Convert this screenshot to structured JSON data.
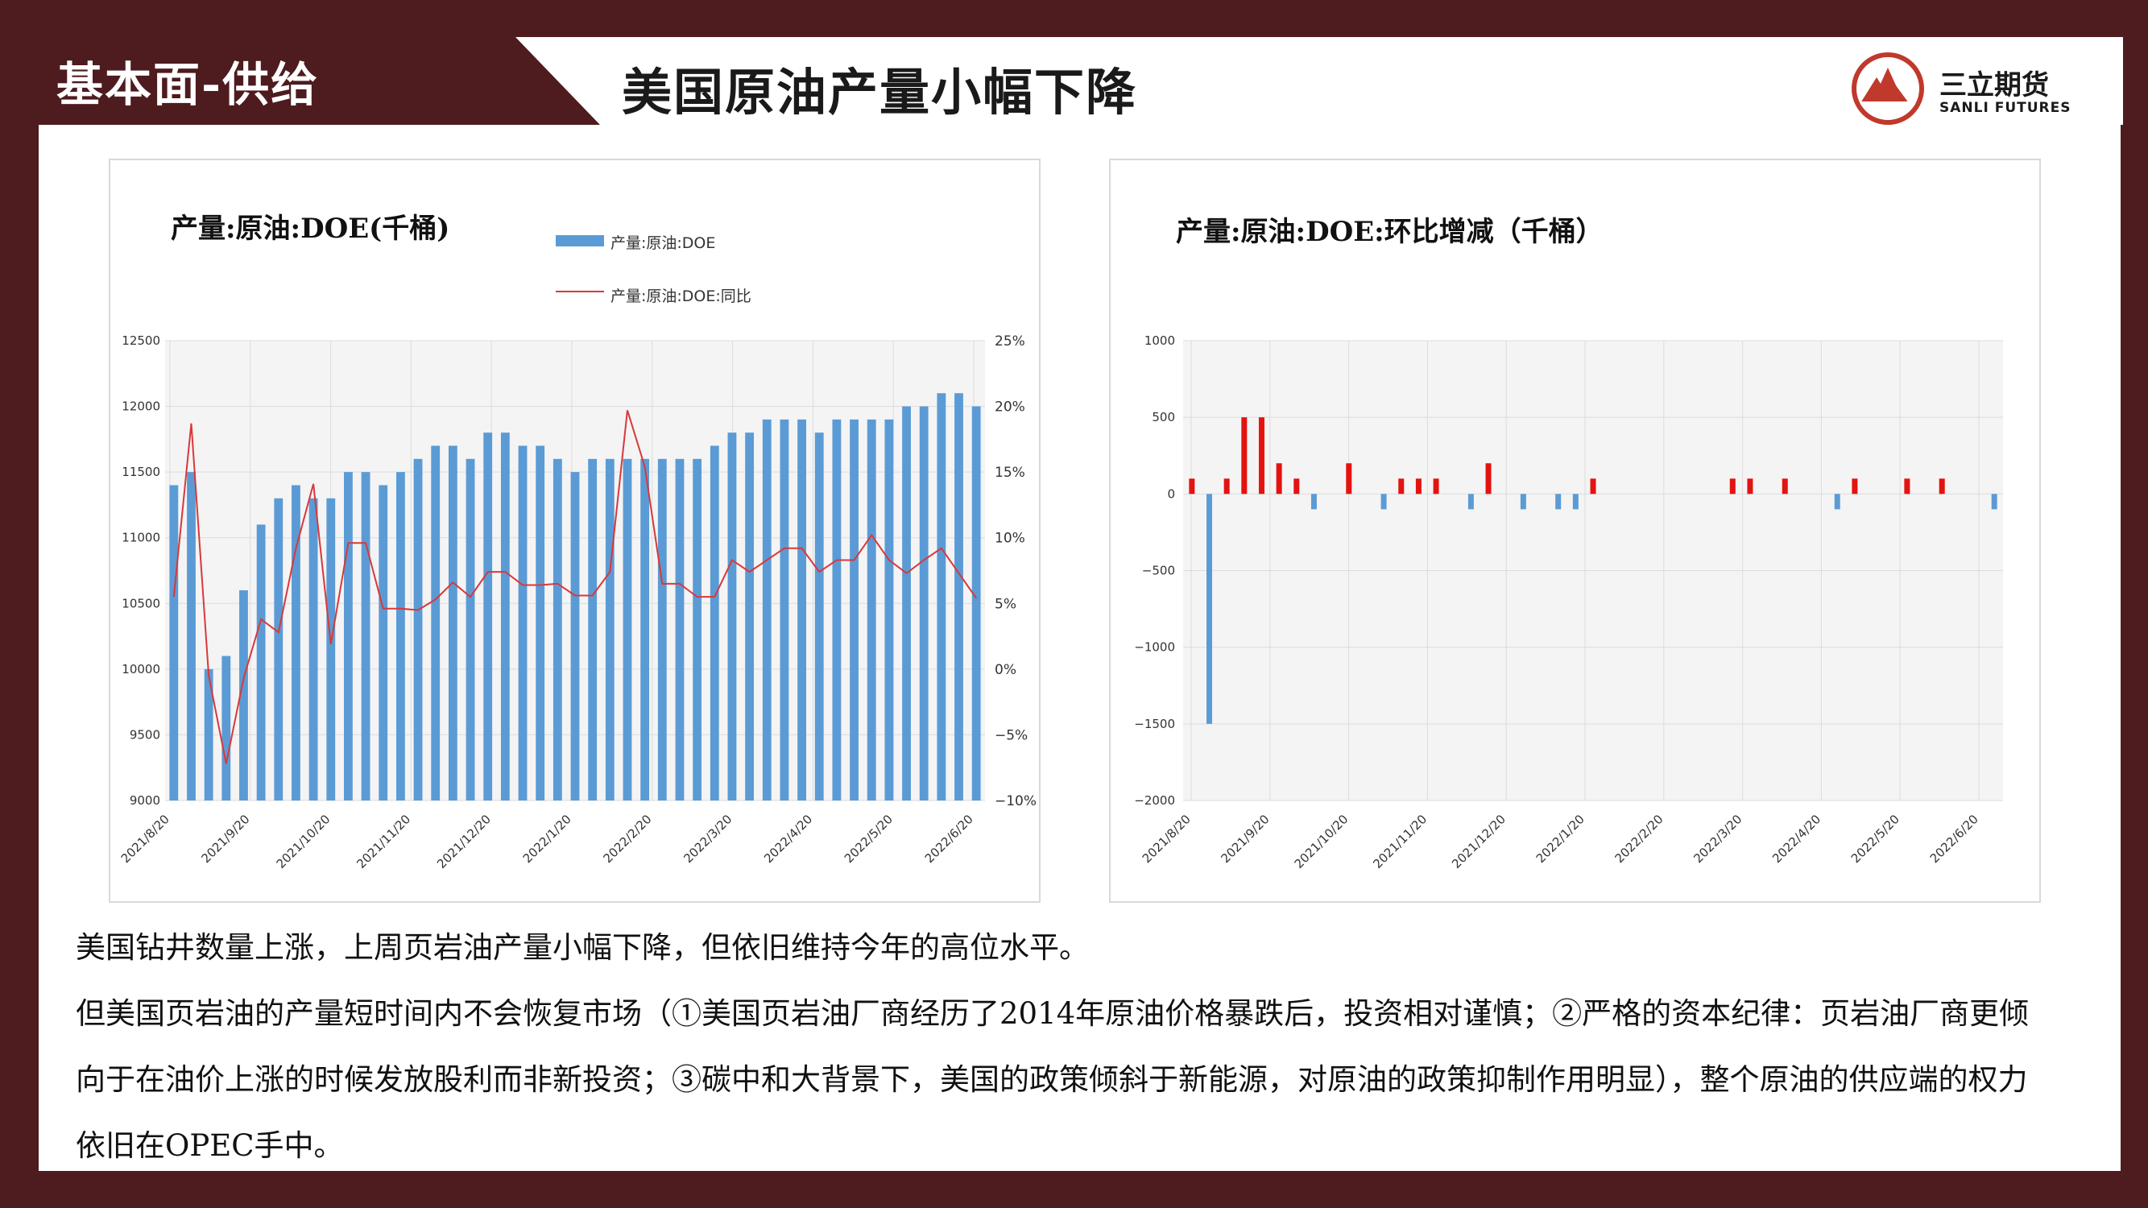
{
  "header": {
    "section_title": "基本面-供给",
    "main_title": "美国原油产量小幅下降",
    "logo_name": "三立期货",
    "logo_subtitle": "SANLI FUTURES",
    "colors": {
      "frame": "#4e1b1f",
      "accent": "#c0392b"
    }
  },
  "chart_data": [
    {
      "type": "bar",
      "title": "产量:原油:DOE(千桶)",
      "series": [
        {
          "name": "产量:原油:DOE",
          "type": "bar",
          "axis": "left",
          "color": "#5b9bd5",
          "values": [
            11400,
            11500,
            10000,
            10100,
            10600,
            11100,
            11300,
            11400,
            11300,
            11300,
            11500,
            11500,
            11400,
            11500,
            11600,
            11700,
            11700,
            11600,
            11800,
            11800,
            11700,
            11700,
            11600,
            11500,
            11600,
            11600,
            11600,
            11600,
            11600,
            11600,
            11600,
            11700,
            11800,
            11800,
            11900,
            11900,
            11900,
            11800,
            11900,
            11900,
            11900,
            11900,
            12000,
            12000,
            12100,
            12100,
            12000
          ]
        },
        {
          "name": "产量:原油:DOE:同比",
          "type": "line",
          "axis": "right",
          "color": "#d9383a",
          "values": [
            5.5,
            18.7,
            -0.5,
            -7.2,
            -0.7,
            3.8,
            2.8,
            9.2,
            14.1,
            1.9,
            9.6,
            9.6,
            4.6,
            4.6,
            4.5,
            5.3,
            6.6,
            5.5,
            7.4,
            7.4,
            6.4,
            6.4,
            6.5,
            5.6,
            5.6,
            7.4,
            19.7,
            15.4,
            6.5,
            6.5,
            5.5,
            5.5,
            8.3,
            7.4,
            8.3,
            9.2,
            9.2,
            7.4,
            8.3,
            8.3,
            10.2,
            8.3,
            7.3,
            8.3,
            9.2,
            7.3,
            5.4
          ]
        }
      ],
      "x_ticks": [
        "2021/8/20",
        "2021/9/20",
        "2021/10/20",
        "2021/11/20",
        "2021/12/20",
        "2022/1/20",
        "2022/2/20",
        "2022/3/20",
        "2022/4/20",
        "2022/5/20",
        "2022/6/20"
      ],
      "y_left_ticks": [
        "9000",
        "9500",
        "10000",
        "10500",
        "11000",
        "11500",
        "12000",
        "12500"
      ],
      "y_right_ticks": [
        "−10%",
        "−5%",
        "0%",
        "5%",
        "10%",
        "15%",
        "20%",
        "25%"
      ],
      "ylim_left": [
        9000,
        12500
      ],
      "ylim_right": [
        -10,
        25
      ],
      "legend": "top-center",
      "grid": true
    },
    {
      "type": "bar",
      "title": "产量:原油:DOE:环比增减（千桶）",
      "series": [
        {
          "name": "",
          "color_positive": "#e3130f",
          "color_negative": "#5b9bd5",
          "values": [
            100,
            -1500,
            100,
            500,
            500,
            200,
            100,
            -100,
            0,
            200,
            0,
            -100,
            100,
            100,
            100,
            0,
            -100,
            200,
            0,
            -100,
            0,
            -100,
            -100,
            100,
            0,
            0,
            0,
            0,
            0,
            0,
            0,
            100,
            100,
            0,
            100,
            0,
            0,
            -100,
            100,
            0,
            0,
            100,
            0,
            100,
            0,
            0,
            -100
          ]
        }
      ],
      "x_ticks": [
        "2021/8/20",
        "2021/9/20",
        "2021/10/20",
        "2021/11/20",
        "2021/12/20",
        "2022/1/20",
        "2022/2/20",
        "2022/3/20",
        "2022/4/20",
        "2022/5/20",
        "2022/6/20"
      ],
      "y_ticks": [
        "−2000",
        "−1500",
        "−1000",
        "−500",
        "0",
        "500",
        "1000"
      ],
      "ylim": [
        -2000,
        1000
      ],
      "grid": true
    }
  ],
  "body": {
    "paragraphs": [
      "美国钻井数量上涨，上周页岩油产量小幅下降，但依旧维持今年的高位水平。",
      "但美国页岩油的产量短时间内不会恢复市场（①美国页岩油厂商经历了2014年原油价格暴跌后，投资相对谨慎；②严格的资本纪律：页岩油厂商更倾向于在油价上涨的时候发放股利而非新投资；③碳中和大背景下，美国的政策倾斜于新能源，对原油的政策抑制作用明显），整个原油的供应端的权力依旧在OPEC手中。"
    ]
  }
}
